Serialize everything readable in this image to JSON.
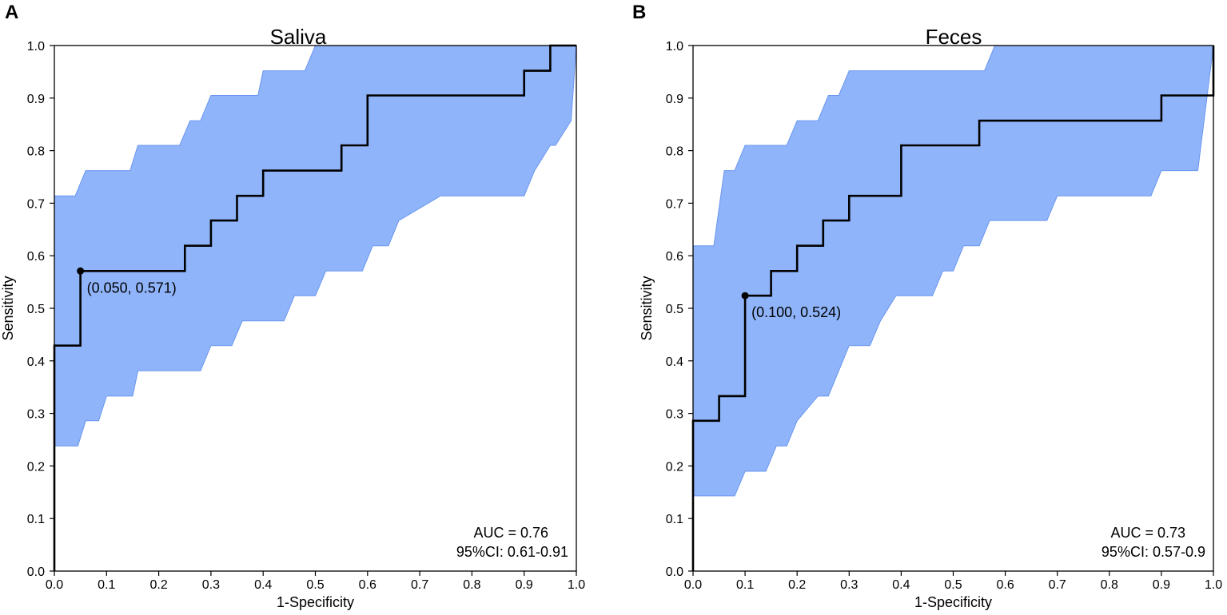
{
  "chart_data": [
    {
      "type": "line",
      "panel_label": "A",
      "title": "Saliva",
      "xlabel": "1-Specificity",
      "ylabel": "Sensitivity",
      "xlim": [
        0,
        1
      ],
      "ylim": [
        0,
        1
      ],
      "x_ticks": [
        "0.0",
        "0.1",
        "0.2",
        "0.3",
        "0.4",
        "0.5",
        "0.6",
        "0.7",
        "0.8",
        "0.9",
        "1.0"
      ],
      "y_ticks": [
        "0.0",
        "0.1",
        "0.2",
        "0.3",
        "0.4",
        "0.5",
        "0.6",
        "0.7",
        "0.8",
        "0.9",
        "1.0"
      ],
      "roc_curve": {
        "x": [
          0,
          0,
          0.05,
          0.05,
          0.25,
          0.25,
          0.3,
          0.3,
          0.35,
          0.35,
          0.4,
          0.4,
          0.55,
          0.55,
          0.6,
          0.6,
          0.9,
          0.9,
          0.95,
          0.95,
          1.0
        ],
        "y": [
          0,
          0.429,
          0.429,
          0.571,
          0.571,
          0.619,
          0.619,
          0.667,
          0.667,
          0.714,
          0.714,
          0.762,
          0.762,
          0.81,
          0.81,
          0.905,
          0.905,
          0.952,
          0.952,
          1.0,
          1.0
        ]
      },
      "ci_band": {
        "upper_x": [
          0,
          0.04,
          0.06,
          0.1,
          0.145,
          0.16,
          0.2,
          0.24,
          0.26,
          0.28,
          0.3,
          0.34,
          0.39,
          0.4,
          0.44,
          0.48,
          0.5,
          0.54,
          0.56,
          0.64,
          1.0
        ],
        "upper_y": [
          0.714,
          0.714,
          0.762,
          0.762,
          0.762,
          0.81,
          0.81,
          0.81,
          0.857,
          0.857,
          0.905,
          0.905,
          0.905,
          0.952,
          0.952,
          0.952,
          1.0,
          1.0,
          1.0,
          1.0,
          1.0
        ],
        "lower_x": [
          0,
          0.045,
          0.06,
          0.085,
          0.1,
          0.15,
          0.16,
          0.28,
          0.3,
          0.34,
          0.36,
          0.44,
          0.46,
          0.5,
          0.52,
          0.59,
          0.61,
          0.64,
          0.66,
          0.74,
          0.76,
          0.9,
          0.92,
          0.95,
          0.96,
          0.99,
          1.0
        ],
        "lower_y": [
          0.238,
          0.238,
          0.286,
          0.286,
          0.333,
          0.333,
          0.381,
          0.381,
          0.429,
          0.429,
          0.476,
          0.476,
          0.524,
          0.524,
          0.571,
          0.571,
          0.619,
          0.619,
          0.667,
          0.714,
          0.714,
          0.714,
          0.762,
          0.81,
          0.81,
          0.857,
          1.0
        ]
      },
      "optimal_point": {
        "x": 0.05,
        "y": 0.571,
        "label": "(0.050, 0.571)"
      },
      "auc_text": "AUC = 0.76",
      "ci_text": "95%CI: 0.61-0.91"
    },
    {
      "type": "line",
      "panel_label": "B",
      "title": "Feces",
      "xlabel": "1-Specificity",
      "ylabel": "Sensitivity",
      "xlim": [
        0,
        1
      ],
      "ylim": [
        0,
        1
      ],
      "x_ticks": [
        "0.0",
        "0.1",
        "0.2",
        "0.3",
        "0.4",
        "0.5",
        "0.6",
        "0.7",
        "0.8",
        "0.9",
        "1.0"
      ],
      "y_ticks": [
        "0.0",
        "0.1",
        "0.2",
        "0.3",
        "0.4",
        "0.5",
        "0.6",
        "0.7",
        "0.8",
        "0.9",
        "1.0"
      ],
      "roc_curve": {
        "x": [
          0,
          0,
          0.05,
          0.05,
          0.1,
          0.1,
          0.15,
          0.15,
          0.2,
          0.2,
          0.25,
          0.25,
          0.3,
          0.3,
          0.4,
          0.4,
          0.55,
          0.55,
          0.9,
          0.9,
          1.0,
          1.0
        ],
        "y": [
          0,
          0.286,
          0.286,
          0.333,
          0.333,
          0.524,
          0.524,
          0.571,
          0.571,
          0.619,
          0.619,
          0.667,
          0.667,
          0.714,
          0.714,
          0.81,
          0.81,
          0.857,
          0.857,
          0.905,
          0.905,
          1.0
        ]
      },
      "ci_band": {
        "upper_x": [
          0,
          0.04,
          0.06,
          0.08,
          0.1,
          0.18,
          0.2,
          0.24,
          0.26,
          0.28,
          0.3,
          0.36,
          0.39,
          0.56,
          0.58,
          1.0
        ],
        "upper_y": [
          0.619,
          0.619,
          0.762,
          0.762,
          0.81,
          0.81,
          0.857,
          0.857,
          0.905,
          0.905,
          0.952,
          0.952,
          0.952,
          0.952,
          1.0,
          1.0
        ],
        "lower_x": [
          0,
          0.08,
          0.1,
          0.14,
          0.16,
          0.18,
          0.2,
          0.24,
          0.26,
          0.3,
          0.34,
          0.36,
          0.39,
          0.46,
          0.48,
          0.5,
          0.52,
          0.55,
          0.57,
          0.68,
          0.7,
          0.88,
          0.9,
          0.97,
          1.0
        ],
        "lower_y": [
          0.143,
          0.143,
          0.19,
          0.19,
          0.238,
          0.238,
          0.286,
          0.333,
          0.333,
          0.429,
          0.429,
          0.476,
          0.524,
          0.524,
          0.571,
          0.571,
          0.619,
          0.619,
          0.667,
          0.667,
          0.714,
          0.714,
          0.762,
          0.762,
          1.0
        ]
      },
      "optimal_point": {
        "x": 0.1,
        "y": 0.524,
        "label": "(0.100, 0.524)"
      },
      "auc_text": "AUC = 0.73",
      "ci_text": "95%CI: 0.57-0.9"
    }
  ],
  "colors": {
    "ci_fill": "#8fb4fa",
    "ci_stroke": "#6a96ee",
    "curve": "#000000"
  }
}
